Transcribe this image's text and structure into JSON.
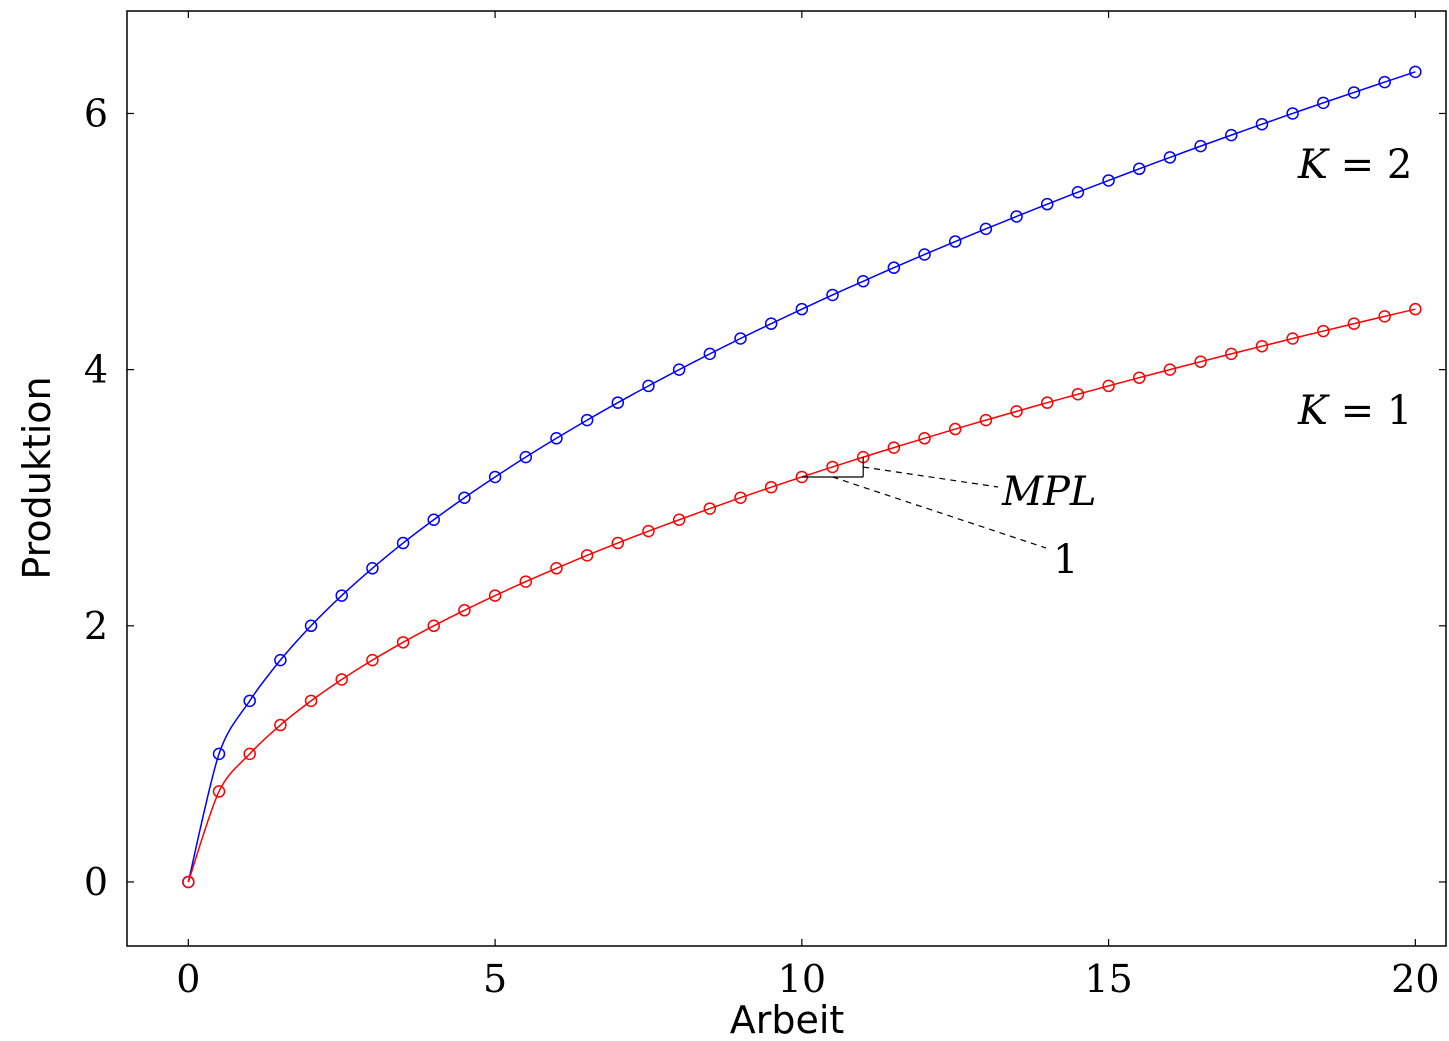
{
  "chart_data": {
    "type": "line",
    "xlabel": "Arbeit",
    "ylabel": "Produktion",
    "xlim": [
      -1,
      20.5
    ],
    "ylim": [
      -0.5,
      6.8
    ],
    "xticks": [
      0,
      5,
      10,
      15,
      20
    ],
    "yticks": [
      0,
      2,
      4,
      6
    ],
    "grid": false,
    "x": [
      0,
      0.5,
      1,
      1.5,
      2,
      2.5,
      3,
      3.5,
      4,
      4.5,
      5,
      5.5,
      6,
      6.5,
      7,
      7.5,
      8,
      8.5,
      9,
      9.5,
      10,
      10.5,
      11,
      11.5,
      12,
      12.5,
      13,
      13.5,
      14,
      14.5,
      15,
      15.5,
      16,
      16.5,
      17,
      17.5,
      18,
      18.5,
      19,
      19.5,
      20
    ],
    "series": [
      {
        "color": "#0000ff",
        "marker": "circle",
        "values": [
          0,
          1.0,
          1.414,
          1.732,
          2.0,
          2.236,
          2.449,
          2.646,
          2.828,
          3.0,
          3.162,
          3.317,
          3.464,
          3.606,
          3.742,
          3.873,
          4.0,
          4.123,
          4.243,
          4.359,
          4.472,
          4.583,
          4.69,
          4.796,
          4.899,
          5.0,
          5.099,
          5.196,
          5.292,
          5.385,
          5.477,
          5.568,
          5.657,
          5.745,
          5.831,
          5.916,
          6.0,
          6.083,
          6.164,
          6.245,
          6.325
        ]
      },
      {
        "color": "#ff0000",
        "marker": "circle",
        "values": [
          0,
          0.707,
          1.0,
          1.225,
          1.414,
          1.581,
          1.732,
          1.871,
          2.0,
          2.121,
          2.236,
          2.345,
          2.449,
          2.55,
          2.646,
          2.739,
          2.828,
          2.915,
          3.0,
          3.082,
          3.162,
          3.24,
          3.317,
          3.391,
          3.464,
          3.536,
          3.606,
          3.674,
          3.742,
          3.808,
          3.873,
          3.937,
          4.0,
          4.062,
          4.123,
          4.183,
          4.243,
          4.301,
          4.359,
          4.416,
          4.472
        ]
      }
    ],
    "annotations": {
      "k2": {
        "var": "K",
        "eq": " = 2"
      },
      "k1": {
        "var": "K",
        "eq": " = 1"
      },
      "mpl": "MPL",
      "one": "1"
    },
    "slope_triangle": {
      "x0": 10,
      "x1": 11
    }
  }
}
